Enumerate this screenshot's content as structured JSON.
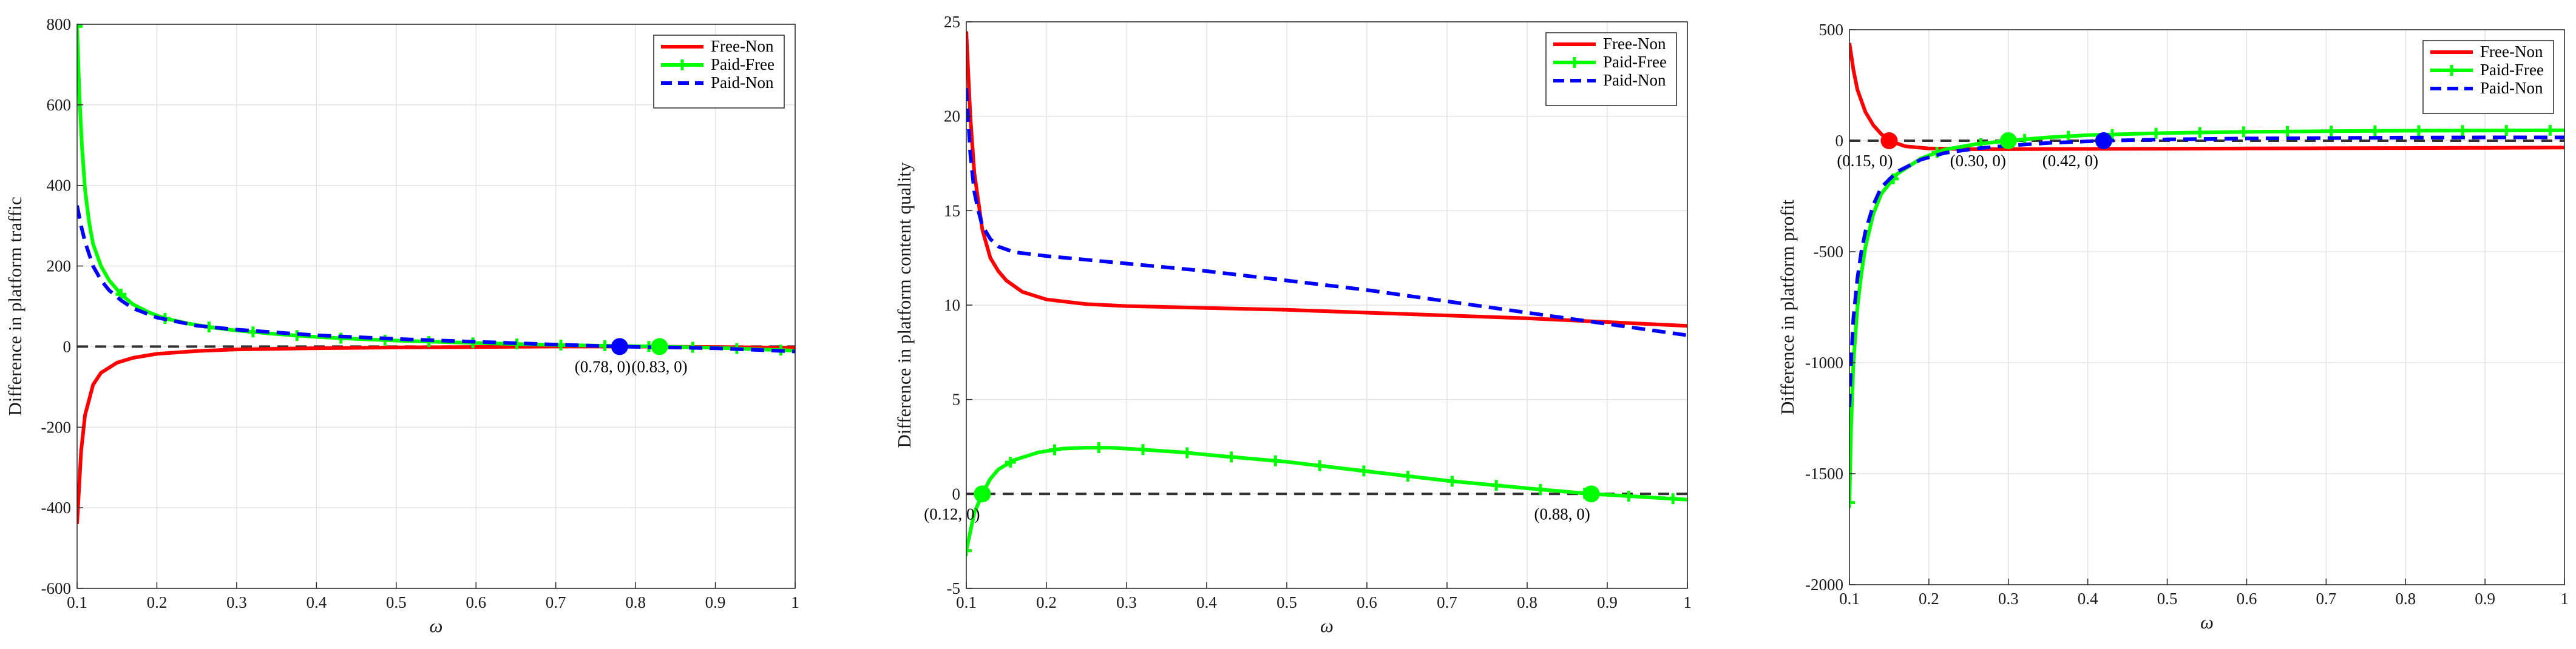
{
  "chart_data": [
    {
      "type": "line",
      "xlabel": "ω",
      "ylabel": "Difference in platform traffic",
      "xlim": [
        0.1,
        1
      ],
      "ylim": [
        -600,
        800
      ],
      "xticks": [
        "0.1",
        "0.2",
        "0.3",
        "0.4",
        "0.5",
        "0.6",
        "0.7",
        "0.8",
        "0.9",
        "1"
      ],
      "yticks": [
        "-600",
        "-400",
        "-200",
        "0",
        "200",
        "400",
        "600",
        "800"
      ],
      "grid": true,
      "legend": "top-right",
      "series": [
        {
          "name": "Free-Non",
          "color": "#ff0000",
          "style": "solid",
          "marker": "none",
          "x": [
            0.1,
            0.105,
            0.11,
            0.12,
            0.13,
            0.15,
            0.17,
            0.2,
            0.25,
            0.3,
            0.4,
            0.5,
            0.6,
            0.7,
            0.8,
            0.9,
            1.0
          ],
          "y": [
            -440,
            -260,
            -170,
            -95,
            -65,
            -40,
            -28,
            -18,
            -11,
            -7,
            -4,
            -2,
            -1,
            0,
            0,
            -1,
            -3
          ]
        },
        {
          "name": "Paid-Free",
          "color": "#00ff00",
          "style": "solid",
          "marker": "plus",
          "x": [
            0.1,
            0.103,
            0.106,
            0.11,
            0.115,
            0.12,
            0.13,
            0.14,
            0.155,
            0.17,
            0.19,
            0.21,
            0.24,
            0.27,
            0.3,
            0.35,
            0.4,
            0.45,
            0.5,
            0.6,
            0.7,
            0.8,
            0.83,
            0.9,
            1.0
          ],
          "y": [
            795,
            620,
            500,
            390,
            310,
            255,
            200,
            165,
            130,
            105,
            85,
            70,
            57,
            47,
            40,
            31,
            24,
            19,
            15,
            9,
            4,
            1,
            0,
            -3,
            -10
          ]
        },
        {
          "name": "Paid-Non",
          "color": "#0000ff",
          "style": "dashed",
          "marker": "none",
          "x": [
            0.1,
            0.105,
            0.11,
            0.12,
            0.13,
            0.14,
            0.155,
            0.17,
            0.2,
            0.25,
            0.3,
            0.4,
            0.5,
            0.6,
            0.7,
            0.78,
            0.9,
            1.0
          ],
          "y": [
            350,
            300,
            260,
            200,
            165,
            140,
            115,
            95,
            72,
            52,
            42,
            28,
            19,
            12,
            5,
            0,
            -4,
            -12
          ]
        },
        {
          "name": "",
          "color": "#333333",
          "style": "dashed",
          "marker": "none",
          "x": [
            0.1,
            1.0
          ],
          "y": [
            0,
            0
          ]
        }
      ],
      "points": [
        {
          "x": 0.78,
          "y": 0,
          "color": "#0000ff",
          "label": "(0.78, 0)"
        },
        {
          "x": 0.83,
          "y": 0,
          "color": "#00ff00",
          "label": "(0.83, 0)"
        }
      ]
    },
    {
      "type": "line",
      "xlabel": "ω",
      "ylabel": "Difference in platform content quality",
      "xlim": [
        0.1,
        1
      ],
      "ylim": [
        -5,
        25
      ],
      "xticks": [
        "0.1",
        "0.2",
        "0.3",
        "0.4",
        "0.5",
        "0.6",
        "0.7",
        "0.8",
        "0.9",
        "1"
      ],
      "yticks": [
        "-5",
        "0",
        "5",
        "10",
        "15",
        "20",
        "25"
      ],
      "grid": true,
      "legend": "top-right",
      "series": [
        {
          "name": "Free-Non",
          "color": "#ff0000",
          "style": "solid",
          "marker": "none",
          "x": [
            0.1,
            0.105,
            0.11,
            0.12,
            0.13,
            0.14,
            0.15,
            0.17,
            0.2,
            0.25,
            0.3,
            0.4,
            0.5,
            0.6,
            0.7,
            0.8,
            0.9,
            1.0
          ],
          "y": [
            24.5,
            20,
            17,
            14,
            12.5,
            11.8,
            11.3,
            10.7,
            10.3,
            10.05,
            9.95,
            9.85,
            9.75,
            9.6,
            9.45,
            9.3,
            9.1,
            8.9
          ]
        },
        {
          "name": "Paid-Free",
          "color": "#00ff00",
          "style": "solid",
          "marker": "plus",
          "x": [
            0.1,
            0.105,
            0.11,
            0.115,
            0.12,
            0.13,
            0.14,
            0.16,
            0.19,
            0.22,
            0.25,
            0.28,
            0.32,
            0.37,
            0.42,
            0.5,
            0.6,
            0.7,
            0.8,
            0.88,
            0.92,
            1.0
          ],
          "y": [
            -3,
            -2,
            -1,
            -0.5,
            0,
            0.8,
            1.3,
            1.8,
            2.2,
            2.4,
            2.45,
            2.45,
            2.35,
            2.2,
            2.0,
            1.7,
            1.2,
            0.7,
            0.3,
            0,
            -0.1,
            -0.3
          ]
        },
        {
          "name": "Paid-Non",
          "color": "#0000ff",
          "style": "dashed",
          "marker": "none",
          "x": [
            0.1,
            0.105,
            0.11,
            0.115,
            0.12,
            0.13,
            0.14,
            0.16,
            0.2,
            0.3,
            0.4,
            0.5,
            0.6,
            0.7,
            0.8,
            0.9,
            1.0
          ],
          "y": [
            21.5,
            18,
            16,
            15,
            14.2,
            13.5,
            13.1,
            12.8,
            12.6,
            12.2,
            11.8,
            11.3,
            10.8,
            10.2,
            9.6,
            9.0,
            8.4
          ]
        },
        {
          "name": "",
          "color": "#333333",
          "style": "dashed",
          "marker": "none",
          "x": [
            0.1,
            1.0
          ],
          "y": [
            0,
            0
          ]
        }
      ],
      "points": [
        {
          "x": 0.12,
          "y": 0,
          "color": "#00ff00",
          "label": "(0.12, 0)"
        },
        {
          "x": 0.88,
          "y": 0,
          "color": "#00ff00",
          "label": "(0.88, 0)"
        }
      ]
    },
    {
      "type": "line",
      "xlabel": "ω",
      "ylabel": "Difference in platform profit",
      "xlim": [
        0.1,
        1
      ],
      "ylim": [
        -2000,
        500
      ],
      "xticks": [
        "0.1",
        "0.2",
        "0.3",
        "0.4",
        "0.5",
        "0.6",
        "0.7",
        "0.8",
        "0.9",
        "1"
      ],
      "yticks": [
        "-2000",
        "-1500",
        "-1000",
        "-500",
        "0",
        "500"
      ],
      "grid": true,
      "legend": "top-right",
      "series": [
        {
          "name": "Free-Non",
          "color": "#ff0000",
          "style": "solid",
          "marker": "none",
          "x": [
            0.1,
            0.105,
            0.11,
            0.12,
            0.13,
            0.14,
            0.15,
            0.17,
            0.2,
            0.25,
            0.3,
            0.4,
            0.5,
            0.6,
            0.7,
            0.8,
            0.9,
            1.0
          ],
          "y": [
            440,
            320,
            230,
            130,
            70,
            30,
            0,
            -25,
            -35,
            -38,
            -38,
            -37,
            -36,
            -35,
            -34,
            -33,
            -32,
            -31
          ]
        },
        {
          "name": "Paid-Free",
          "color": "#00ff00",
          "style": "solid",
          "marker": "plus",
          "x": [
            0.1,
            0.102,
            0.105,
            0.11,
            0.115,
            0.12,
            0.13,
            0.14,
            0.16,
            0.19,
            0.22,
            0.26,
            0.3,
            0.35,
            0.4,
            0.5,
            0.6,
            0.7,
            0.8,
            0.9,
            1.0
          ],
          "y": [
            -1630,
            -1300,
            -1000,
            -750,
            -600,
            -480,
            -330,
            -240,
            -150,
            -80,
            -40,
            -15,
            0,
            15,
            25,
            35,
            40,
            43,
            45,
            46,
            47
          ]
        },
        {
          "name": "Paid-Non",
          "color": "#0000ff",
          "style": "dashed",
          "marker": "none",
          "x": [
            0.1,
            0.102,
            0.105,
            0.11,
            0.115,
            0.12,
            0.13,
            0.14,
            0.16,
            0.19,
            0.22,
            0.26,
            0.3,
            0.35,
            0.42,
            0.5,
            0.6,
            0.7,
            0.8,
            0.9,
            1.0
          ],
          "y": [
            -1200,
            -1000,
            -800,
            -620,
            -500,
            -410,
            -290,
            -210,
            -140,
            -85,
            -55,
            -35,
            -22,
            -10,
            0,
            6,
            10,
            12,
            14,
            15,
            15
          ]
        },
        {
          "name": "",
          "color": "#333333",
          "style": "dashed",
          "marker": "none",
          "x": [
            0.1,
            1.0
          ],
          "y": [
            0,
            0
          ]
        }
      ],
      "points": [
        {
          "x": 0.15,
          "y": 0,
          "color": "#ff0000",
          "label": "(0.15, 0)"
        },
        {
          "x": 0.3,
          "y": 0,
          "color": "#00ff00",
          "label": "(0.30, 0)"
        },
        {
          "x": 0.42,
          "y": 0,
          "color": "#0000ff",
          "label": "(0.42, 0)"
        }
      ]
    }
  ]
}
